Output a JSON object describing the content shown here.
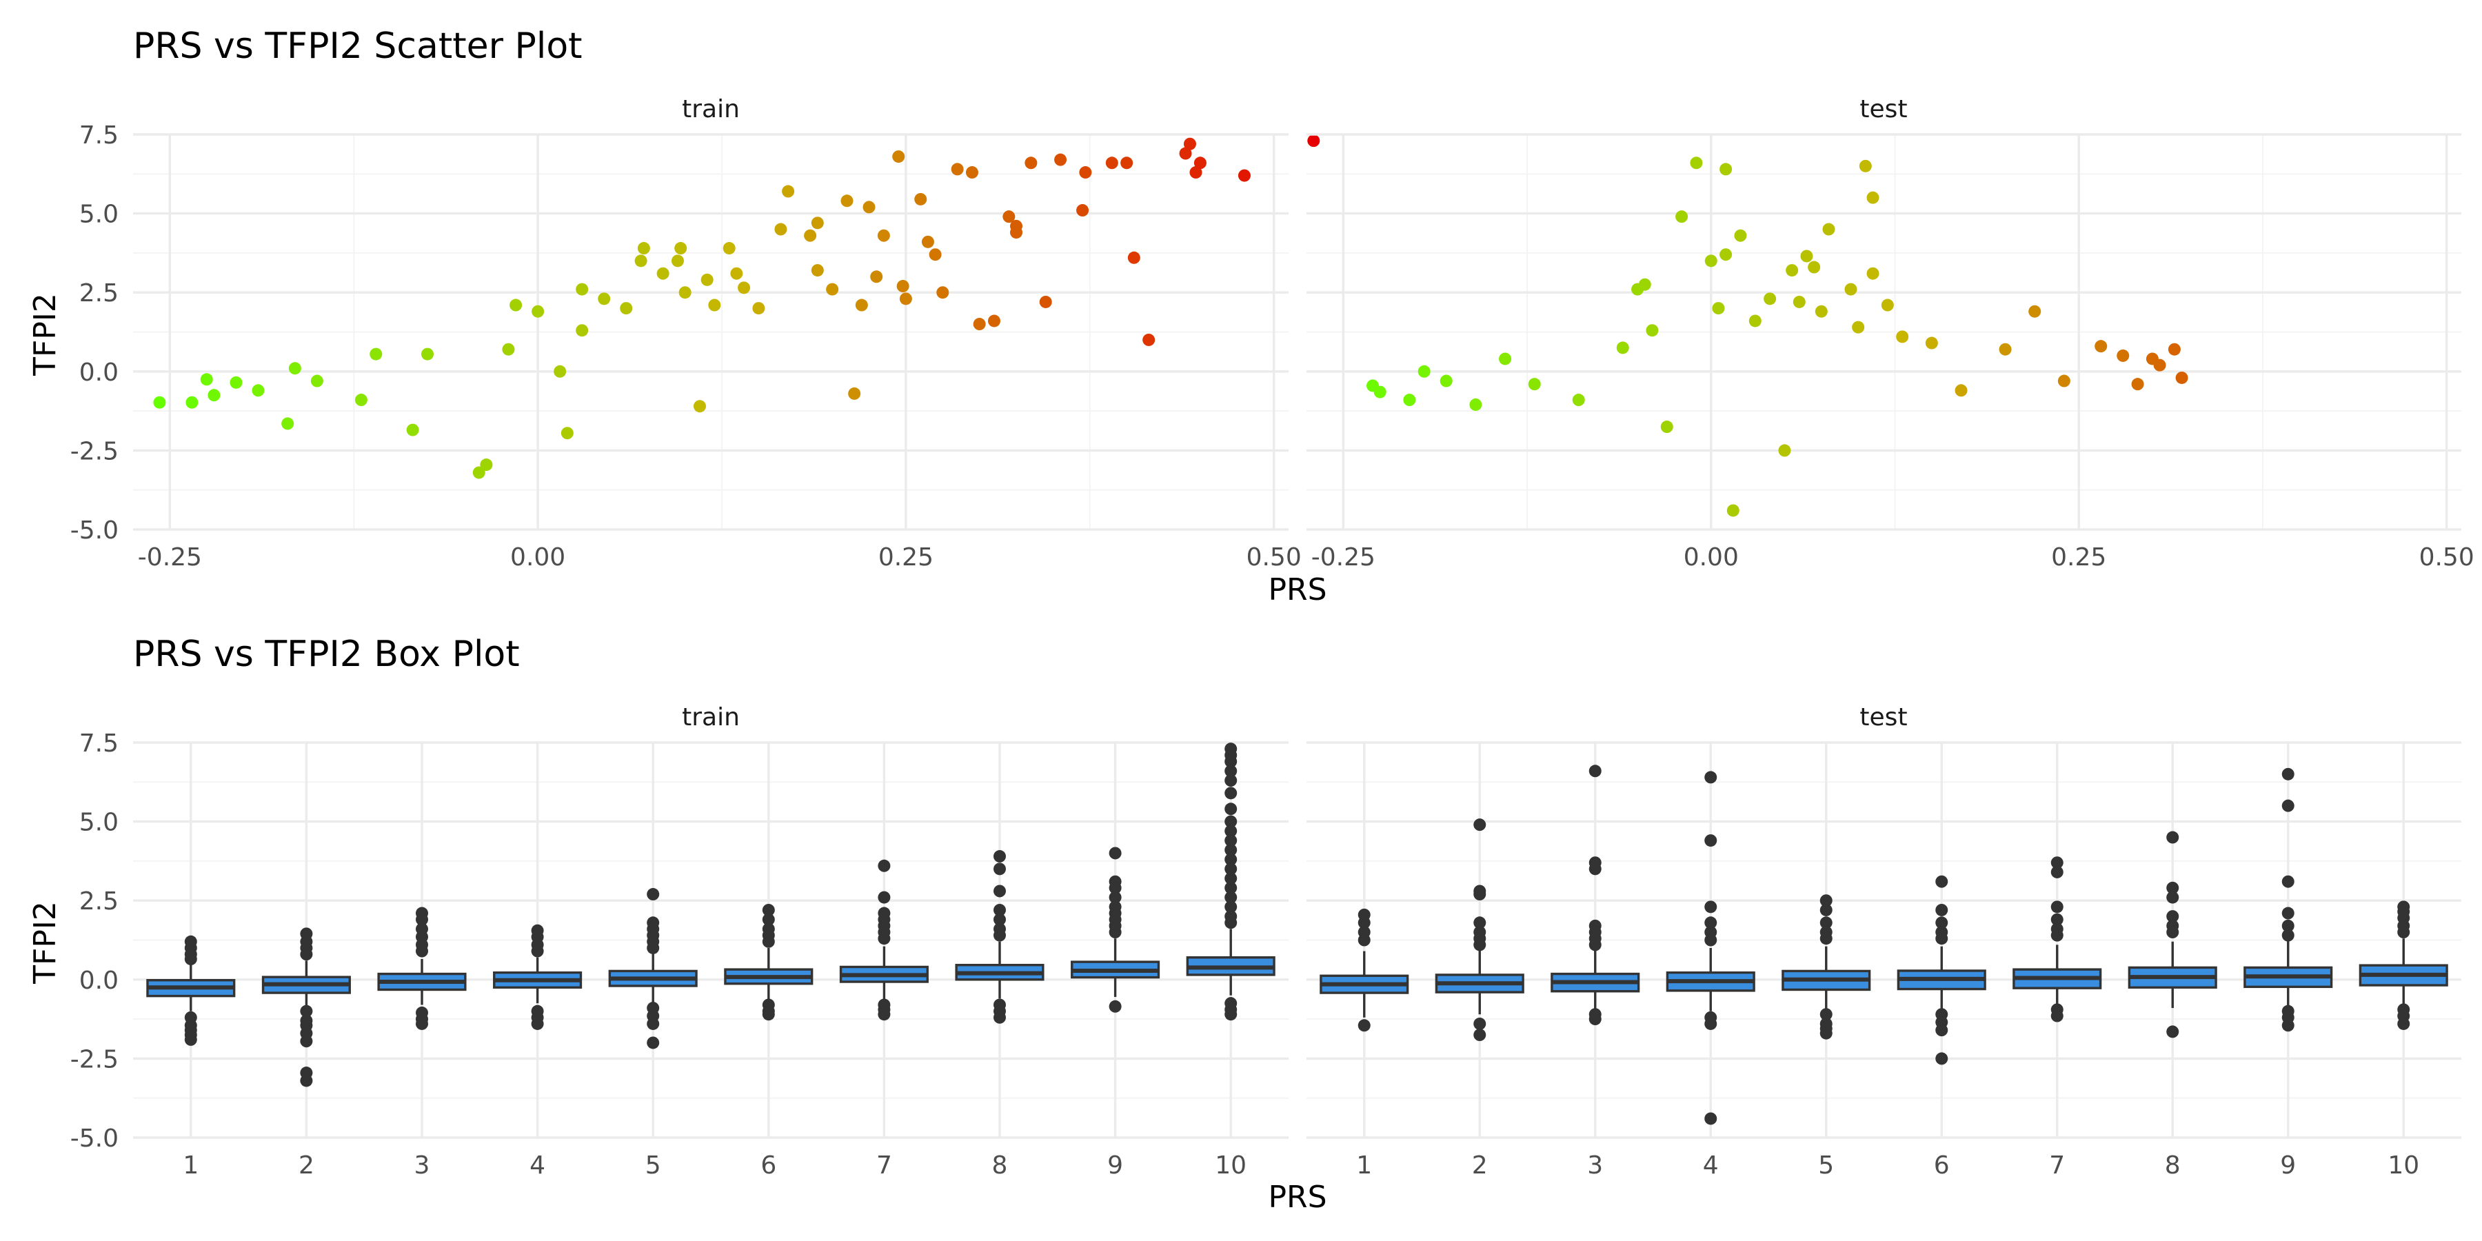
{
  "colors": {
    "low": "#66ff00",
    "mid": "#c8b400",
    "high": "#e60000",
    "box_fill": "#3a8ee0",
    "box_line": "#333333",
    "grid_major": "#ebebeb",
    "grid_minor": "#f3f3f3"
  },
  "chart_data": [
    {
      "type": "scatter",
      "title": "PRS vs TFPI2 Scatter Plot",
      "xlabel": "PRS",
      "ylabel": "TFPI2",
      "xlim": [
        -0.275,
        0.51
      ],
      "ylim": [
        -5.0,
        7.5
      ],
      "x_ticks": [
        -0.25,
        0.0,
        0.25,
        0.5
      ],
      "x_tick_labels": [
        "-0.25",
        "0.00",
        "0.25",
        "0.50"
      ],
      "y_ticks": [
        -5.0,
        -2.5,
        0.0,
        2.5,
        5.0,
        7.5
      ],
      "y_tick_labels": [
        "-5.0",
        "-2.5",
        "0.0",
        "2.5",
        "5.0",
        "7.5"
      ],
      "color_scale": "gradient on PRS: green (low) to red (high)",
      "grid": true,
      "facets": [
        {
          "name": "train",
          "points": [
            [
              -0.257,
              -0.98
            ],
            [
              -0.235,
              -0.98
            ],
            [
              -0.225,
              -0.25
            ],
            [
              -0.22,
              -0.75
            ],
            [
              -0.205,
              -0.35
            ],
            [
              -0.19,
              -0.6
            ],
            [
              -0.17,
              -1.65
            ],
            [
              -0.165,
              0.1
            ],
            [
              -0.15,
              -0.3
            ],
            [
              -0.12,
              -0.9
            ],
            [
              -0.11,
              0.55
            ],
            [
              -0.085,
              -1.85
            ],
            [
              -0.075,
              0.55
            ],
            [
              -0.035,
              -2.95
            ],
            [
              -0.04,
              -3.2
            ],
            [
              -0.02,
              0.7
            ],
            [
              -0.015,
              2.1
            ],
            [
              0.0,
              1.9
            ],
            [
              0.015,
              0.0
            ],
            [
              0.02,
              -1.95
            ],
            [
              0.03,
              1.3
            ],
            [
              0.03,
              2.6
            ],
            [
              0.045,
              2.3
            ],
            [
              0.06,
              2.0
            ],
            [
              0.07,
              3.5
            ],
            [
              0.072,
              3.9
            ],
            [
              0.085,
              3.1
            ],
            [
              0.095,
              3.5
            ],
            [
              0.097,
              3.9
            ],
            [
              0.1,
              2.5
            ],
            [
              0.11,
              -1.1
            ],
            [
              0.115,
              2.9
            ],
            [
              0.12,
              2.1
            ],
            [
              0.13,
              3.9
            ],
            [
              0.135,
              3.1
            ],
            [
              0.14,
              2.65
            ],
            [
              0.15,
              2.0
            ],
            [
              0.165,
              4.5
            ],
            [
              0.17,
              5.7
            ],
            [
              0.185,
              4.3
            ],
            [
              0.19,
              4.7
            ],
            [
              0.19,
              3.2
            ],
            [
              0.2,
              2.6
            ],
            [
              0.21,
              5.4
            ],
            [
              0.215,
              -0.7
            ],
            [
              0.22,
              2.1
            ],
            [
              0.225,
              5.2
            ],
            [
              0.23,
              3.0
            ],
            [
              0.235,
              4.3
            ],
            [
              0.245,
              6.8
            ],
            [
              0.248,
              2.7
            ],
            [
              0.25,
              2.3
            ],
            [
              0.26,
              5.45
            ],
            [
              0.265,
              4.1
            ],
            [
              0.27,
              3.7
            ],
            [
              0.275,
              2.5
            ],
            [
              0.285,
              6.4
            ],
            [
              0.295,
              6.3
            ],
            [
              0.3,
              1.5
            ],
            [
              0.31,
              1.6
            ],
            [
              0.32,
              4.9
            ],
            [
              0.325,
              4.4
            ],
            [
              0.325,
              4.6
            ],
            [
              0.335,
              6.6
            ],
            [
              0.345,
              2.2
            ],
            [
              0.355,
              6.7
            ],
            [
              0.37,
              5.1
            ],
            [
              0.372,
              6.3
            ],
            [
              0.39,
              6.6
            ],
            [
              0.4,
              6.6
            ],
            [
              0.405,
              3.6
            ],
            [
              0.415,
              1.0
            ],
            [
              0.44,
              6.9
            ],
            [
              0.443,
              7.2
            ],
            [
              0.447,
              6.3
            ],
            [
              0.45,
              6.6
            ],
            [
              0.48,
              6.2
            ],
            [
              0.527,
              7.3
            ]
          ]
        },
        {
          "name": "test",
          "points": [
            [
              -0.23,
              -0.45
            ],
            [
              -0.225,
              -0.65
            ],
            [
              -0.205,
              -0.9
            ],
            [
              -0.195,
              0.0
            ],
            [
              -0.18,
              -0.3
            ],
            [
              -0.16,
              -1.05
            ],
            [
              -0.14,
              0.4
            ],
            [
              -0.12,
              -0.4
            ],
            [
              -0.09,
              -0.9
            ],
            [
              -0.06,
              0.75
            ],
            [
              -0.05,
              2.6
            ],
            [
              -0.045,
              2.75
            ],
            [
              -0.04,
              1.3
            ],
            [
              -0.03,
              -1.75
            ],
            [
              -0.02,
              4.9
            ],
            [
              -0.01,
              6.6
            ],
            [
              0.0,
              3.5
            ],
            [
              0.005,
              2.0
            ],
            [
              0.01,
              6.4
            ],
            [
              0.01,
              3.7
            ],
            [
              0.015,
              -4.4
            ],
            [
              0.02,
              4.3
            ],
            [
              0.03,
              1.6
            ],
            [
              0.04,
              2.3
            ],
            [
              0.05,
              -2.5
            ],
            [
              0.055,
              3.2
            ],
            [
              0.06,
              2.2
            ],
            [
              0.065,
              3.65
            ],
            [
              0.07,
              3.3
            ],
            [
              0.075,
              1.9
            ],
            [
              0.08,
              4.5
            ],
            [
              0.095,
              2.6
            ],
            [
              0.1,
              1.4
            ],
            [
              0.105,
              6.5
            ],
            [
              0.11,
              5.5
            ],
            [
              0.11,
              3.1
            ],
            [
              0.12,
              2.1
            ],
            [
              0.13,
              1.1
            ],
            [
              0.15,
              0.9
            ],
            [
              0.17,
              -0.6
            ],
            [
              0.2,
              0.7
            ],
            [
              0.22,
              1.9
            ],
            [
              0.24,
              -0.3
            ],
            [
              0.265,
              0.8
            ],
            [
              0.28,
              0.5
            ],
            [
              0.29,
              -0.4
            ],
            [
              0.3,
              0.4
            ],
            [
              0.305,
              0.2
            ],
            [
              0.315,
              0.7
            ],
            [
              0.32,
              -0.2
            ]
          ]
        }
      ]
    },
    {
      "type": "box",
      "title": "PRS vs TFPI2 Box Plot",
      "xlabel": "PRS",
      "ylabel": "TFPI2",
      "categories": [
        "1",
        "2",
        "3",
        "4",
        "5",
        "6",
        "7",
        "8",
        "9",
        "10"
      ],
      "ylim": [
        -5.0,
        7.5
      ],
      "y_ticks": [
        -5.0,
        -2.5,
        0.0,
        2.5,
        5.0,
        7.5
      ],
      "y_tick_labels": [
        "-5.0",
        "-2.5",
        "0.0",
        "2.5",
        "5.0",
        "7.5"
      ],
      "grid": true,
      "facets": [
        {
          "name": "train",
          "boxes": [
            {
              "q1": -0.52,
              "median": -0.25,
              "q3": -0.02,
              "lo": -1.0,
              "hi": 0.5,
              "outliers": [
                1.2,
                1.0,
                0.8,
                0.65,
                -1.2,
                -1.45,
                -1.6,
                -1.75,
                -1.9
              ]
            },
            {
              "q1": -0.42,
              "median": -0.15,
              "q3": 0.08,
              "lo": -0.9,
              "hi": 0.6,
              "outliers": [
                1.45,
                1.2,
                1.0,
                0.8,
                -1.0,
                -1.3,
                -1.45,
                -1.7,
                -1.95,
                -2.95,
                -3.2
              ]
            },
            {
              "q1": -0.32,
              "median": -0.07,
              "q3": 0.18,
              "lo": -0.8,
              "hi": 0.65,
              "outliers": [
                2.1,
                1.9,
                1.6,
                1.35,
                1.1,
                0.9,
                -1.05,
                -1.25,
                -1.4
              ]
            },
            {
              "q1": -0.25,
              "median": -0.02,
              "q3": 0.22,
              "lo": -0.75,
              "hi": 0.7,
              "outliers": [
                1.55,
                1.35,
                1.1,
                0.9,
                -1.0,
                -1.2,
                -1.4
              ]
            },
            {
              "q1": -0.2,
              "median": 0.03,
              "q3": 0.27,
              "lo": -0.75,
              "hi": 0.85,
              "outliers": [
                2.7,
                1.8,
                1.6,
                1.4,
                1.2,
                1.0,
                -0.9,
                -1.15,
                -1.4,
                -2.0
              ]
            },
            {
              "q1": -0.13,
              "median": 0.08,
              "q3": 0.32,
              "lo": -0.7,
              "hi": 1.0,
              "outliers": [
                2.2,
                1.9,
                1.6,
                1.4,
                1.2,
                -0.8,
                -1.0,
                -1.1
              ]
            },
            {
              "q1": -0.07,
              "median": 0.14,
              "q3": 0.4,
              "lo": -0.65,
              "hi": 1.05,
              "outliers": [
                3.6,
                2.6,
                2.1,
                1.9,
                1.7,
                1.5,
                1.3,
                -0.8,
                -0.95,
                -1.1
              ]
            },
            {
              "q1": 0.0,
              "median": 0.2,
              "q3": 0.46,
              "lo": -0.6,
              "hi": 1.2,
              "outliers": [
                3.9,
                3.5,
                2.8,
                2.2,
                1.9,
                1.6,
                1.4,
                -0.8,
                -1.0,
                -1.2
              ]
            },
            {
              "q1": 0.07,
              "median": 0.28,
              "q3": 0.56,
              "lo": -0.55,
              "hi": 1.3,
              "outliers": [
                4.0,
                3.1,
                2.9,
                2.6,
                2.3,
                2.1,
                1.9,
                1.7,
                1.5,
                -0.85
              ]
            },
            {
              "q1": 0.15,
              "median": 0.38,
              "q3": 0.7,
              "lo": -0.5,
              "hi": 1.6,
              "outliers": [
                7.3,
                7.1,
                6.9,
                6.6,
                6.3,
                5.9,
                5.4,
                5.0,
                4.7,
                4.4,
                4.1,
                3.8,
                3.5,
                3.2,
                2.9,
                2.6,
                2.3,
                2.0,
                1.8,
                -0.75,
                -0.95,
                -1.1
              ]
            }
          ]
        },
        {
          "name": "test",
          "boxes": [
            {
              "q1": -0.42,
              "median": -0.15,
              "q3": 0.12,
              "lo": -1.2,
              "hi": 0.9,
              "outliers": [
                2.05,
                1.8,
                1.5,
                1.25,
                -1.45
              ]
            },
            {
              "q1": -0.4,
              "median": -0.12,
              "q3": 0.15,
              "lo": -1.1,
              "hi": 0.95,
              "outliers": [
                4.9,
                2.8,
                2.7,
                1.8,
                1.5,
                1.3,
                1.1,
                -1.4,
                -1.75
              ]
            },
            {
              "q1": -0.37,
              "median": -0.08,
              "q3": 0.18,
              "lo": -1.0,
              "hi": 0.95,
              "outliers": [
                6.6,
                3.7,
                3.5,
                1.7,
                1.5,
                1.3,
                1.1,
                -1.1,
                -1.25
              ]
            },
            {
              "q1": -0.35,
              "median": -0.05,
              "q3": 0.22,
              "lo": -1.0,
              "hi": 1.0,
              "outliers": [
                6.4,
                4.4,
                2.3,
                1.8,
                1.5,
                1.25,
                -1.2,
                -1.4,
                -4.4
              ]
            },
            {
              "q1": -0.32,
              "median": 0.0,
              "q3": 0.27,
              "lo": -0.95,
              "hi": 1.05,
              "outliers": [
                2.5,
                2.2,
                1.8,
                1.5,
                1.3,
                -1.1,
                -1.4,
                -1.55,
                -1.7
              ]
            },
            {
              "q1": -0.3,
              "median": 0.02,
              "q3": 0.28,
              "lo": -0.95,
              "hi": 1.05,
              "outliers": [
                3.1,
                2.2,
                1.8,
                1.5,
                1.3,
                -1.1,
                -1.35,
                -1.6,
                -2.5
              ]
            },
            {
              "q1": -0.27,
              "median": 0.05,
              "q3": 0.32,
              "lo": -0.9,
              "hi": 1.1,
              "outliers": [
                3.7,
                3.4,
                2.3,
                1.9,
                1.6,
                1.4,
                -0.95,
                -1.15
              ]
            },
            {
              "q1": -0.25,
              "median": 0.08,
              "q3": 0.38,
              "lo": -0.9,
              "hi": 1.2,
              "outliers": [
                4.5,
                2.9,
                2.6,
                2.0,
                1.7,
                1.5,
                -1.65
              ]
            },
            {
              "q1": -0.23,
              "median": 0.1,
              "q3": 0.38,
              "lo": -0.9,
              "hi": 1.25,
              "outliers": [
                6.5,
                5.5,
                3.1,
                2.1,
                1.7,
                1.4,
                -1.0,
                -1.2,
                -1.45
              ]
            },
            {
              "q1": -0.18,
              "median": 0.15,
              "q3": 0.45,
              "lo": -0.85,
              "hi": 1.3,
              "outliers": [
                2.3,
                2.15,
                1.95,
                1.7,
                1.5,
                -0.95,
                -1.15,
                -1.4
              ]
            }
          ]
        }
      ]
    }
  ]
}
